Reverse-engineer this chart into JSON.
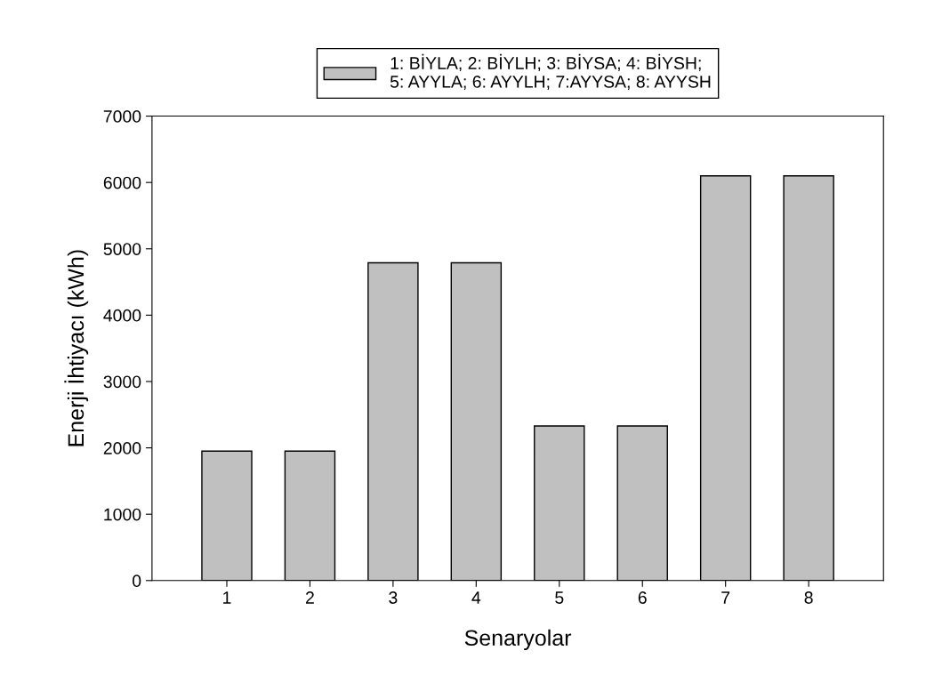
{
  "chart_data": {
    "type": "bar",
    "xlabel": "Senaryolar",
    "ylabel": "Enerji İhtiyacı (kWh)",
    "categories": [
      "1",
      "2",
      "3",
      "4",
      "5",
      "6",
      "7",
      "8"
    ],
    "series": [
      {
        "name": "1: BİYLA; 2: BİYLH; 3: BİYSA; 4: BİYSH;\n5: AYYLA; 6: AYYLH; 7:AYYSA; 8: AYYSH",
        "color": "#c0c0c0",
        "values": [
          1950,
          1950,
          4790,
          4790,
          2330,
          2330,
          6100,
          6100
        ]
      }
    ],
    "ylim": [
      0,
      7000
    ],
    "yticks": [
      0,
      1000,
      2000,
      3000,
      4000,
      5000,
      6000,
      7000
    ],
    "grid": false,
    "legend": "top"
  }
}
